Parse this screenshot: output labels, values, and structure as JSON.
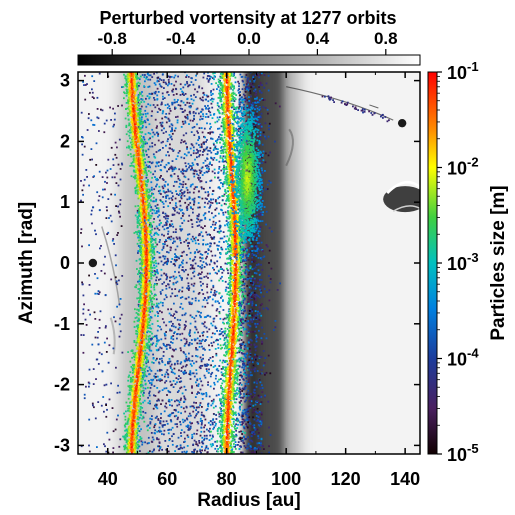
{
  "chart_data": {
    "type": "scatter",
    "title": "Perturbed vortensity at 1277 orbits",
    "xlabel": "Radius [au]",
    "ylabel": "Azimuth [rad]",
    "xlim": [
      30,
      145
    ],
    "ylim": [
      -3.14159,
      3.14159
    ],
    "x_ticks": [
      "40",
      "60",
      "80",
      "100",
      "120",
      "140"
    ],
    "y_ticks": [
      "3",
      "2",
      "1",
      "0",
      "-1",
      "-2",
      "-3"
    ],
    "vortensity_colorbar": {
      "range": [
        -1.0,
        1.0
      ],
      "ticks": [
        "-0.8",
        "-0.4",
        "0.0",
        "0.4",
        "0.8"
      ],
      "colors": [
        "#000000",
        "#ffffff"
      ]
    },
    "size_colorbar": {
      "label": "Particles size [m]",
      "range": [
        1e-05,
        0.1
      ],
      "scale": "log",
      "tick_bases": [
        "10",
        "10",
        "10",
        "10",
        "10"
      ],
      "tick_exponents": [
        "-1",
        "-2",
        "-3",
        "-4",
        "-5"
      ]
    },
    "planets": [
      {
        "radius": 35,
        "azimuth": 0.0
      },
      {
        "radius": 139,
        "azimuth": 2.3
      }
    ],
    "dust_rings": [
      {
        "center_radius": 48,
        "wiggle_to": 53,
        "peak_size": 0.1
      },
      {
        "center_radius": 80,
        "wiggle_to": 83,
        "peak_size": 0.1
      }
    ],
    "vortex": {
      "radius": 87,
      "azimuth": 1.4,
      "peak_size": 0.01
    }
  }
}
